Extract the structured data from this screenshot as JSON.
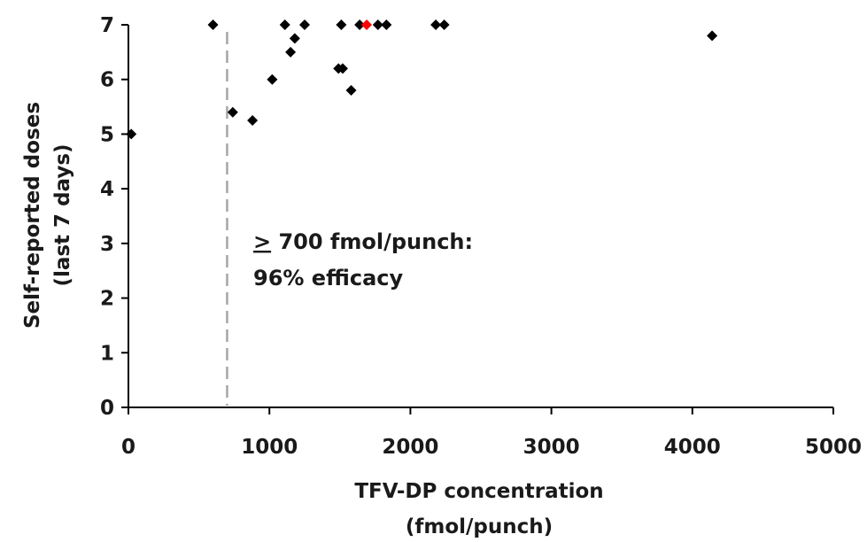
{
  "chart_data": {
    "type": "scatter",
    "xlabel_lines": [
      "TFV-DP concentration",
      "(fmol/punch)"
    ],
    "ylabel_lines": [
      "Self-reported doses",
      "(last 7 days)"
    ],
    "xlim": [
      0,
      5000
    ],
    "ylim": [
      0,
      7
    ],
    "x_ticks": [
      0,
      1000,
      2000,
      3000,
      4000,
      5000
    ],
    "y_ticks": [
      0,
      1,
      2,
      3,
      4,
      5,
      6,
      7
    ],
    "grid": false,
    "threshold": {
      "x": 700,
      "color": "#a6a6a6",
      "style": "dashed"
    },
    "annotation": {
      "line1_symbol": ">",
      "line1_text": " 700 fmol/punch:",
      "line2": "96% efficacy"
    },
    "marker_color": "#000000",
    "highlight_color": "#ff0000",
    "points": [
      {
        "x": 20,
        "y": 5.0
      },
      {
        "x": 600,
        "y": 7.0
      },
      {
        "x": 740,
        "y": 5.4
      },
      {
        "x": 880,
        "y": 5.25
      },
      {
        "x": 1020,
        "y": 6.0
      },
      {
        "x": 1110,
        "y": 7.0
      },
      {
        "x": 1150,
        "y": 6.5
      },
      {
        "x": 1180,
        "y": 6.75
      },
      {
        "x": 1250,
        "y": 7.0
      },
      {
        "x": 1490,
        "y": 6.2
      },
      {
        "x": 1520,
        "y": 6.2
      },
      {
        "x": 1510,
        "y": 7.0
      },
      {
        "x": 1580,
        "y": 5.8
      },
      {
        "x": 1640,
        "y": 7.0
      },
      {
        "x": 1690,
        "y": 7.0,
        "highlight": true
      },
      {
        "x": 1770,
        "y": 7.0
      },
      {
        "x": 1830,
        "y": 7.0
      },
      {
        "x": 2180,
        "y": 7.0
      },
      {
        "x": 2240,
        "y": 7.0
      },
      {
        "x": 4140,
        "y": 6.8
      }
    ]
  }
}
